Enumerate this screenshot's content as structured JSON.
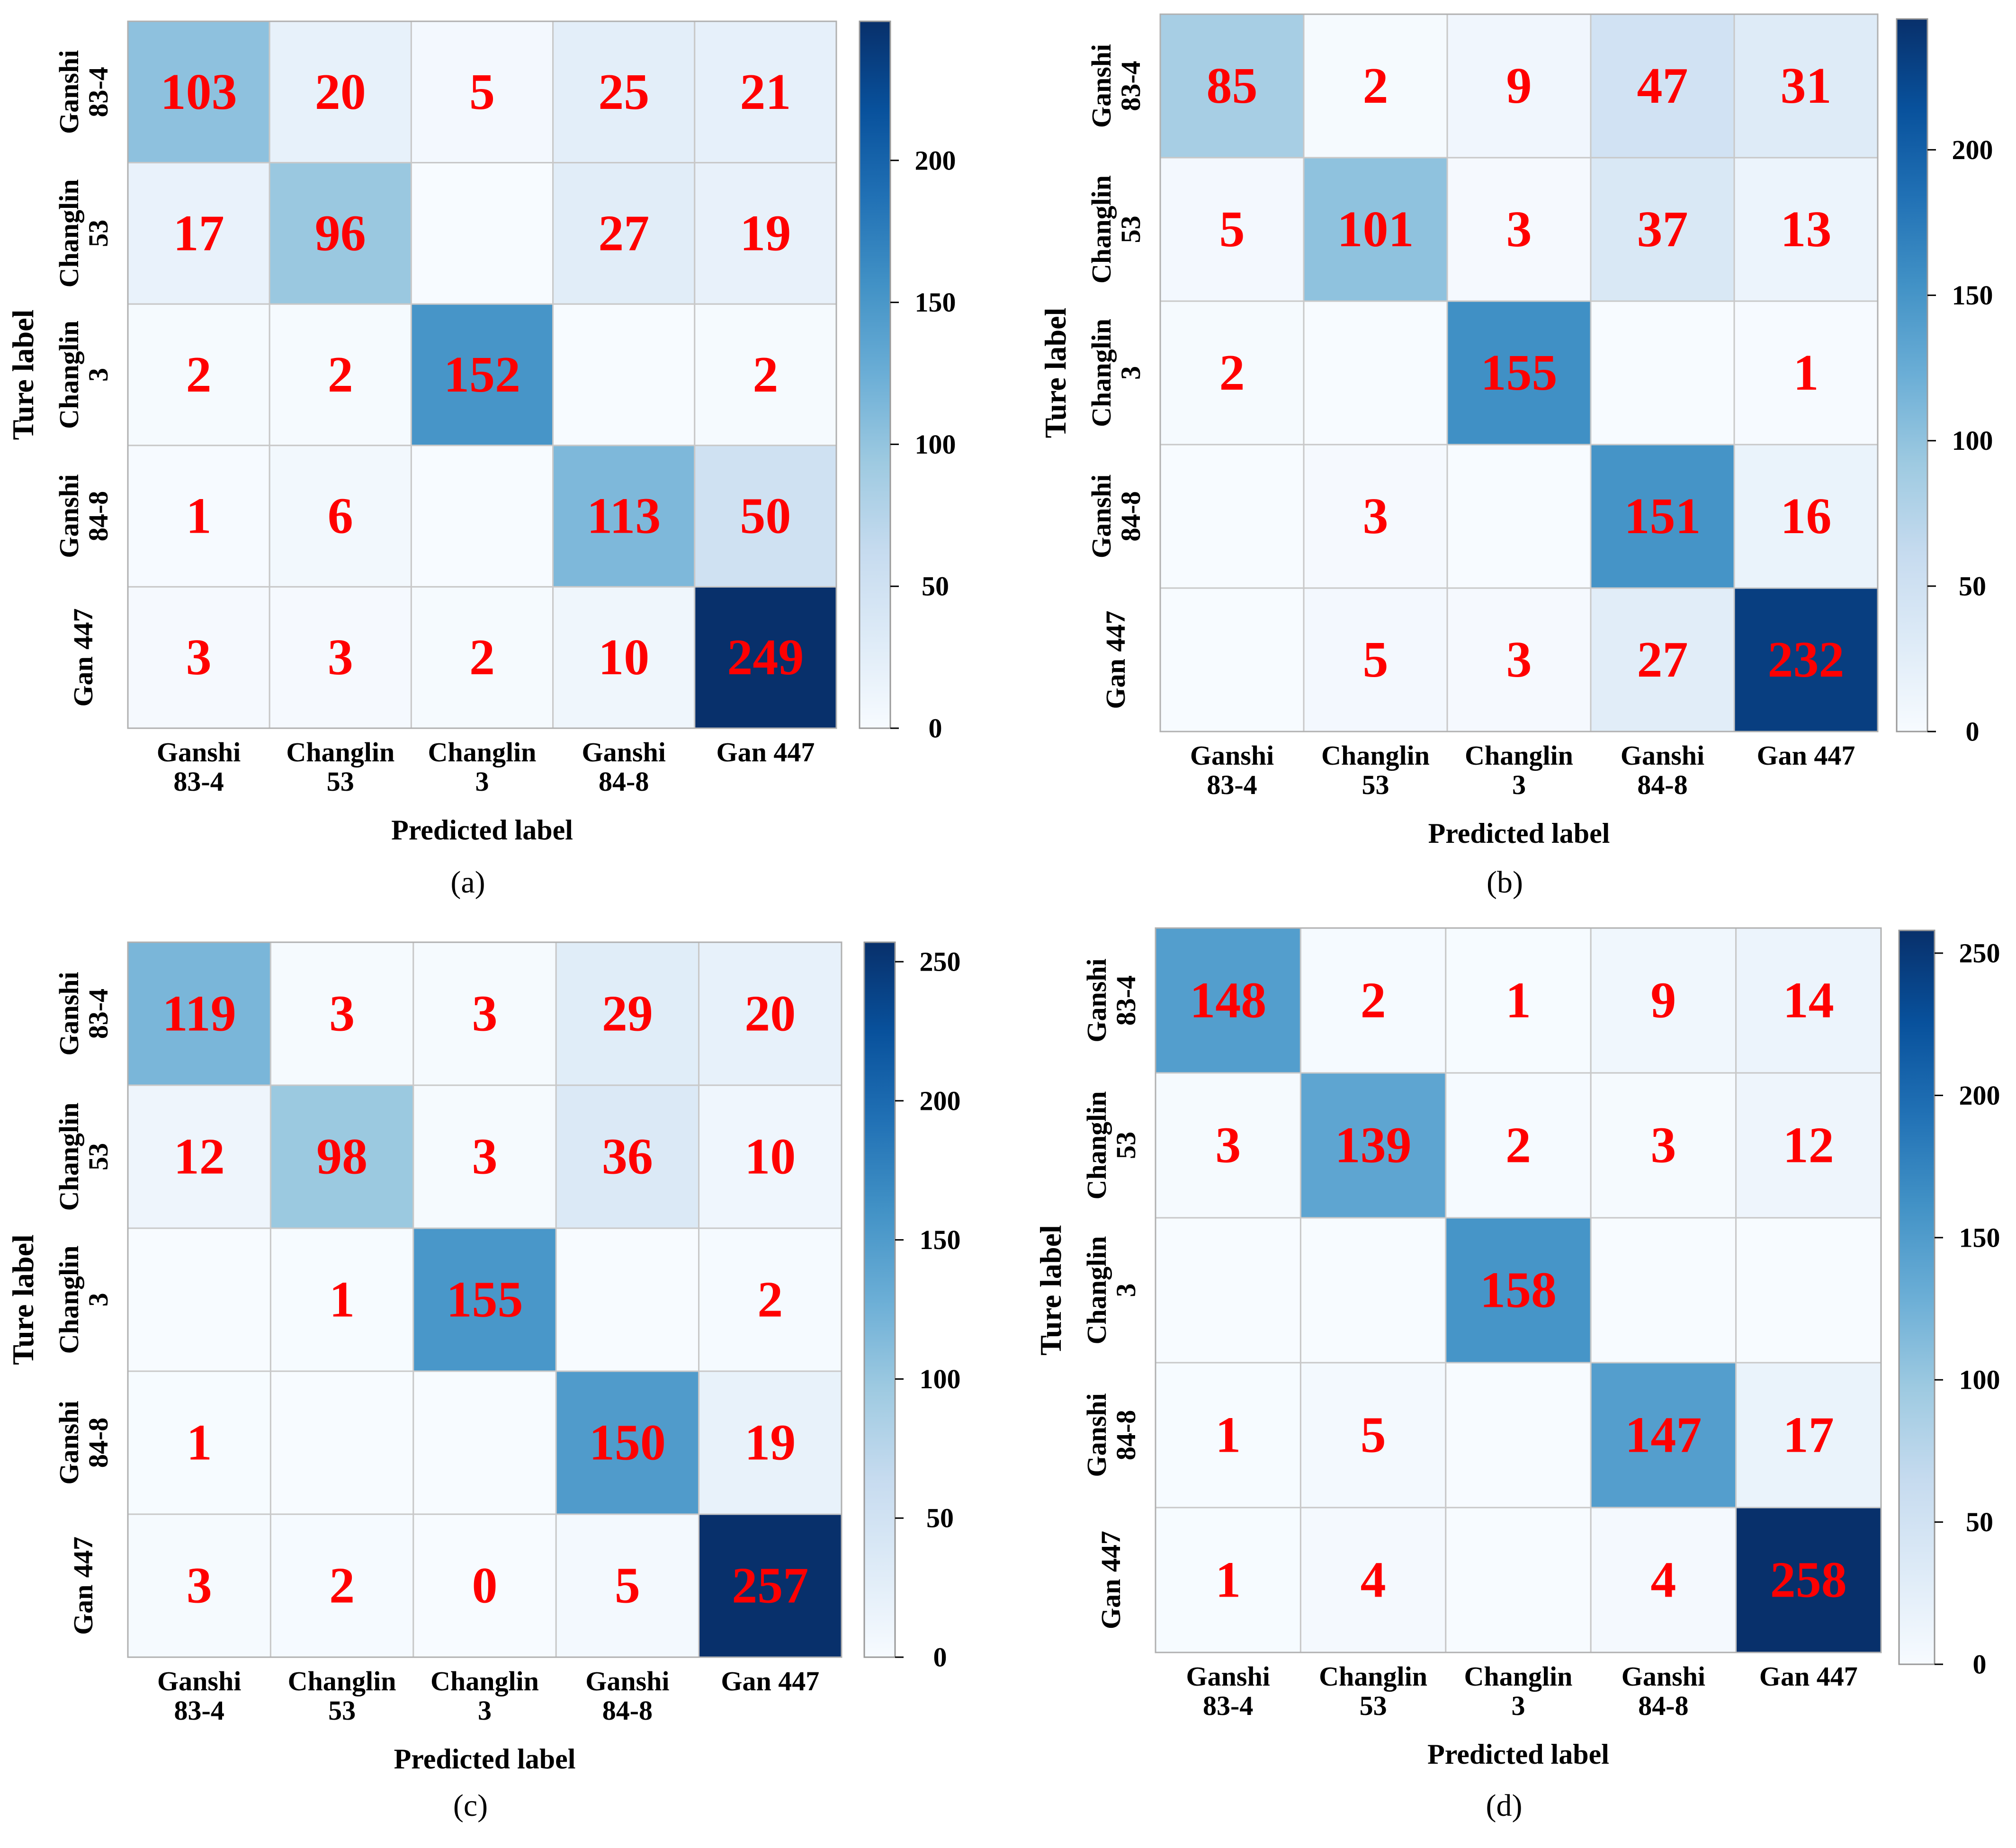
{
  "figure": {
    "colors": {
      "cmap": [
        "#f7fbff",
        "#deebf7",
        "#c6dbef",
        "#9ecae1",
        "#6baed6",
        "#4292c6",
        "#2171b5",
        "#08519c",
        "#08306b"
      ],
      "count_text": "#ff0000",
      "grid": "#c8c8c8",
      "text": "#000000"
    }
  },
  "chart_data": [
    {
      "type": "heatmap",
      "caption": "(a)",
      "xlabel": "Predicted label",
      "ylabel": "Ture label",
      "x_tick_labels": [
        [
          "Ganshi",
          "83-4"
        ],
        [
          "Changlin",
          "53"
        ],
        [
          "Changlin",
          "3"
        ],
        [
          "Ganshi",
          "84-8"
        ],
        [
          "Gan 447"
        ]
      ],
      "y_tick_labels": [
        [
          "Ganshi",
          "83-4"
        ],
        [
          "Changlin",
          "53"
        ],
        [
          "Changlin",
          "3"
        ],
        [
          "Ganshi",
          "84-8"
        ],
        [
          "Gan 447"
        ]
      ],
      "matrix": [
        [
          103,
          20,
          5,
          25,
          21
        ],
        [
          17,
          96,
          0,
          27,
          19
        ],
        [
          2,
          2,
          152,
          0,
          2
        ],
        [
          1,
          6,
          0,
          113,
          50
        ],
        [
          3,
          3,
          2,
          10,
          249
        ]
      ],
      "cell_labels": [
        [
          "103",
          "20",
          "5",
          "25",
          "21"
        ],
        [
          "17",
          "96",
          "",
          "27",
          "19"
        ],
        [
          "2",
          "2",
          "152",
          "",
          "2"
        ],
        [
          "1",
          "6",
          "",
          "113",
          "50"
        ],
        [
          "3",
          "3",
          "2",
          "10",
          "249"
        ]
      ],
      "colorbar": {
        "ticks": [
          0,
          50,
          100,
          150,
          200
        ],
        "vmin": 0,
        "vmax": 249
      }
    },
    {
      "type": "heatmap",
      "caption": "(b)",
      "xlabel": "Predicted label",
      "ylabel": "Ture label",
      "x_tick_labels": [
        [
          "Ganshi",
          "83-4"
        ],
        [
          "Changlin",
          "53"
        ],
        [
          "Changlin",
          "3"
        ],
        [
          "Ganshi",
          "84-8"
        ],
        [
          "Gan 447"
        ]
      ],
      "y_tick_labels": [
        [
          "Ganshi",
          "83-4"
        ],
        [
          "Changlin",
          "53"
        ],
        [
          "Changlin",
          "3"
        ],
        [
          "Ganshi",
          "84-8"
        ],
        [
          "Gan 447"
        ]
      ],
      "matrix": [
        [
          85,
          2,
          9,
          47,
          31
        ],
        [
          5,
          101,
          3,
          37,
          13
        ],
        [
          2,
          0,
          155,
          0,
          1
        ],
        [
          0,
          3,
          0,
          151,
          16
        ],
        [
          0,
          5,
          3,
          27,
          232
        ]
      ],
      "cell_labels": [
        [
          "85",
          "2",
          "9",
          "47",
          "31"
        ],
        [
          "5",
          "101",
          "3",
          "37",
          "13"
        ],
        [
          "2",
          "",
          "155",
          "",
          "1"
        ],
        [
          "",
          "3",
          "",
          "151",
          "16"
        ],
        [
          "",
          "5",
          "3",
          "27",
          "232"
        ]
      ],
      "colorbar": {
        "ticks": [
          0,
          50,
          100,
          150,
          200
        ],
        "vmin": 0,
        "vmax": 245
      }
    },
    {
      "type": "heatmap",
      "caption": "(c)",
      "xlabel": "Predicted label",
      "ylabel": "Ture label",
      "x_tick_labels": [
        [
          "Ganshi",
          "83-4"
        ],
        [
          "Changlin",
          "53"
        ],
        [
          "Changlin",
          "3"
        ],
        [
          "Ganshi",
          "84-8"
        ],
        [
          "Gan 447"
        ]
      ],
      "y_tick_labels": [
        [
          "Ganshi",
          "83-4"
        ],
        [
          "Changlin",
          "53"
        ],
        [
          "Changlin",
          "3"
        ],
        [
          "Ganshi",
          "84-8"
        ],
        [
          "Gan 447"
        ]
      ],
      "matrix": [
        [
          119,
          3,
          3,
          29,
          20
        ],
        [
          12,
          98,
          3,
          36,
          10
        ],
        [
          0,
          1,
          155,
          0,
          2
        ],
        [
          1,
          0,
          0,
          150,
          19
        ],
        [
          3,
          2,
          0,
          5,
          257
        ]
      ],
      "cell_labels": [
        [
          "119",
          "3",
          "3",
          "29",
          "20"
        ],
        [
          "12",
          "98",
          "3",
          "36",
          "10"
        ],
        [
          "",
          "1",
          "155",
          "",
          "2"
        ],
        [
          "1",
          "",
          "",
          "150",
          "19"
        ],
        [
          "3",
          "2",
          "0",
          "5",
          "257"
        ]
      ],
      "colorbar": {
        "ticks": [
          0,
          50,
          100,
          150,
          200,
          250
        ],
        "vmin": 0,
        "vmax": 257
      }
    },
    {
      "type": "heatmap",
      "caption": "(d)",
      "xlabel": "Predicted label",
      "ylabel": "Ture label",
      "x_tick_labels": [
        [
          "Ganshi",
          "83-4"
        ],
        [
          "Changlin",
          "53"
        ],
        [
          "Changlin",
          "3"
        ],
        [
          "Ganshi",
          "84-8"
        ],
        [
          "Gan 447"
        ]
      ],
      "y_tick_labels": [
        [
          "Ganshi",
          "83-4"
        ],
        [
          "Changlin",
          "53"
        ],
        [
          "Changlin",
          "3"
        ],
        [
          "Ganshi",
          "84-8"
        ],
        [
          "Gan 447"
        ]
      ],
      "matrix": [
        [
          148,
          2,
          1,
          9,
          14
        ],
        [
          3,
          139,
          2,
          3,
          12
        ],
        [
          0,
          0,
          158,
          0,
          0
        ],
        [
          1,
          5,
          0,
          147,
          17
        ],
        [
          1,
          4,
          0,
          4,
          258
        ]
      ],
      "cell_labels": [
        [
          "148",
          "2",
          "1",
          "9",
          "14"
        ],
        [
          "3",
          "139",
          "2",
          "3",
          "12"
        ],
        [
          "",
          "",
          "158",
          "",
          ""
        ],
        [
          "1",
          "5",
          "",
          "147",
          "17"
        ],
        [
          "1",
          "4",
          "",
          "4",
          "258"
        ]
      ],
      "colorbar": {
        "ticks": [
          0,
          50,
          100,
          150,
          200,
          250
        ],
        "vmin": 0,
        "vmax": 258
      }
    }
  ]
}
